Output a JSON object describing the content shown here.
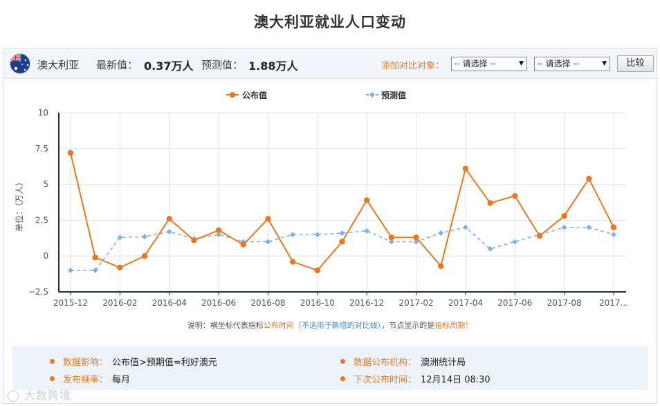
{
  "page_title": "澳大利亚就业人口变动",
  "toolbar": {
    "country": "澳大利亚",
    "latest_label": "最新值：",
    "latest_value": "0.37万人",
    "forecast_label": "预测值：",
    "forecast_value": "1.88万人",
    "compare_label": "添加对比对象：",
    "select1": "-- 请选择 --",
    "select2": "-- 请选择 --",
    "compare_button": "比较",
    "flag_icon": "australia-flag-icon"
  },
  "colors": {
    "published": "#e8781f",
    "forecast": "#7fb3e2",
    "accent": "#e8781f",
    "grid": "#e2e2e2"
  },
  "chart_data": {
    "type": "line",
    "title": "",
    "ylabel": "单位：（万人）",
    "xlabel": "",
    "ylim": [
      -2.5,
      10
    ],
    "yticks": [
      -2.5,
      0,
      2.5,
      5,
      7.5,
      10
    ],
    "ytick_labels": [
      "−2.5",
      "0",
      "2.5",
      "5",
      "7.5",
      "10"
    ],
    "xtick_labels": [
      "2015-12",
      "2016-02",
      "2016-04",
      "2016-06",
      "2016-08",
      "2016-10",
      "2016-12",
      "2017-02",
      "2017-04",
      "2017-06",
      "2017-08",
      "2017..."
    ],
    "x": [
      "2015-12",
      "2016-01",
      "2016-02",
      "2016-03",
      "2016-04",
      "2016-05",
      "2016-06",
      "2016-07",
      "2016-08",
      "2016-09",
      "2016-10",
      "2016-11",
      "2016-12",
      "2017-01",
      "2017-02",
      "2017-03",
      "2017-04",
      "2017-05",
      "2017-06",
      "2017-07",
      "2017-08",
      "2017-09",
      "2017-10"
    ],
    "series": [
      {
        "name": "公布值",
        "style": "solid",
        "values": [
          7.2,
          -0.1,
          -0.8,
          0.0,
          2.6,
          1.1,
          1.8,
          0.8,
          2.6,
          -0.4,
          -1.0,
          1.0,
          3.9,
          1.3,
          1.3,
          -0.7,
          6.1,
          3.7,
          4.2,
          1.4,
          2.8,
          5.4,
          2.0
        ]
      },
      {
        "name": "预测值",
        "style": "dashed",
        "values": [
          -1.0,
          -1.0,
          1.3,
          1.35,
          1.7,
          1.2,
          1.5,
          1.0,
          1.0,
          1.5,
          1.5,
          1.6,
          1.75,
          1.0,
          1.0,
          1.6,
          2.0,
          0.5,
          1.0,
          1.5,
          2.0,
          2.0,
          1.5
        ]
      }
    ],
    "legend": "top-center",
    "grid": true
  },
  "note": {
    "part1": "说明：横坐标代表指标",
    "part2": "公布时间",
    "part3": "（不适用于新增的对比线）",
    "part4": "，节点显示的是",
    "part5": "指标周期",
    "part6": "！"
  },
  "info": {
    "impact_label": "数据影响：",
    "impact_value": "公布值>预期值=利好澳元",
    "agency_label": "数据公布机构：",
    "agency_value": "澳洲统计局",
    "frequency_label": "发布频率：",
    "frequency_value": "每月",
    "next_label": "下次公布时间：",
    "next_value": "12月14日 08:30"
  },
  "watermark": "大数跨境"
}
